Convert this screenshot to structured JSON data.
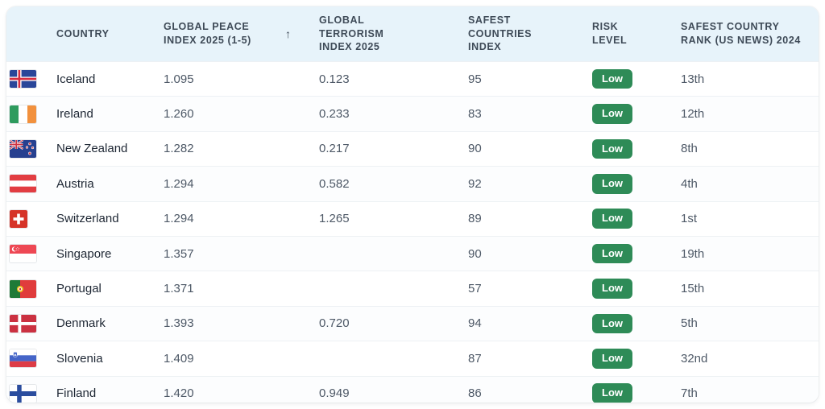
{
  "colors": {
    "header_bg": "#e7f3fa",
    "header_text": "#3e4a57",
    "risk_low_bg": "#2e8b57",
    "risk_low_text": "#ffffff",
    "row_border": "#edf1f4",
    "country_text": "#1d2633",
    "value_text": "#4d5866"
  },
  "header": {
    "columns": [
      {
        "label": "COUNTRY"
      },
      {
        "label": "GLOBAL PEACE INDEX 2025 (1-5)",
        "sort_icon": "↑",
        "sort_direction": "ascending"
      },
      {
        "label": "GLOBAL TERRORISM INDEX 2025"
      },
      {
        "label": "SAFEST COUNTRIES INDEX"
      },
      {
        "label": "RISK LEVEL"
      },
      {
        "label": "SAFEST COUNTRY RANK (US NEWS) 2024"
      }
    ]
  },
  "rows": [
    {
      "country": "Iceland",
      "flag_icon": "flag-iceland-icon",
      "gpi": "1.095",
      "gti": "0.123",
      "sci": "95",
      "risk": "Low",
      "rank": "13th"
    },
    {
      "country": "Ireland",
      "flag_icon": "flag-ireland-icon",
      "gpi": "1.260",
      "gti": "0.233",
      "sci": "83",
      "risk": "Low",
      "rank": "12th"
    },
    {
      "country": "New Zealand",
      "flag_icon": "flag-new-zealand-icon",
      "gpi": "1.282",
      "gti": "0.217",
      "sci": "90",
      "risk": "Low",
      "rank": "8th"
    },
    {
      "country": "Austria",
      "flag_icon": "flag-austria-icon",
      "gpi": "1.294",
      "gti": "0.582",
      "sci": "92",
      "risk": "Low",
      "rank": "4th"
    },
    {
      "country": "Switzerland",
      "flag_icon": "flag-switzerland-icon",
      "gpi": "1.294",
      "gti": "1.265",
      "sci": "89",
      "risk": "Low",
      "rank": "1st"
    },
    {
      "country": "Singapore",
      "flag_icon": "flag-singapore-icon",
      "gpi": "1.357",
      "gti": "",
      "sci": "90",
      "risk": "Low",
      "rank": "19th"
    },
    {
      "country": "Portugal",
      "flag_icon": "flag-portugal-icon",
      "gpi": "1.371",
      "gti": "",
      "sci": "57",
      "risk": "Low",
      "rank": "15th"
    },
    {
      "country": "Denmark",
      "flag_icon": "flag-denmark-icon",
      "gpi": "1.393",
      "gti": "0.720",
      "sci": "94",
      "risk": "Low",
      "rank": "5th"
    },
    {
      "country": "Slovenia",
      "flag_icon": "flag-slovenia-icon",
      "gpi": "1.409",
      "gti": "",
      "sci": "87",
      "risk": "Low",
      "rank": "32nd"
    },
    {
      "country": "Finland",
      "flag_icon": "flag-finland-icon",
      "gpi": "1.420",
      "gti": "0.949",
      "sci": "86",
      "risk": "Low",
      "rank": "7th"
    }
  ]
}
